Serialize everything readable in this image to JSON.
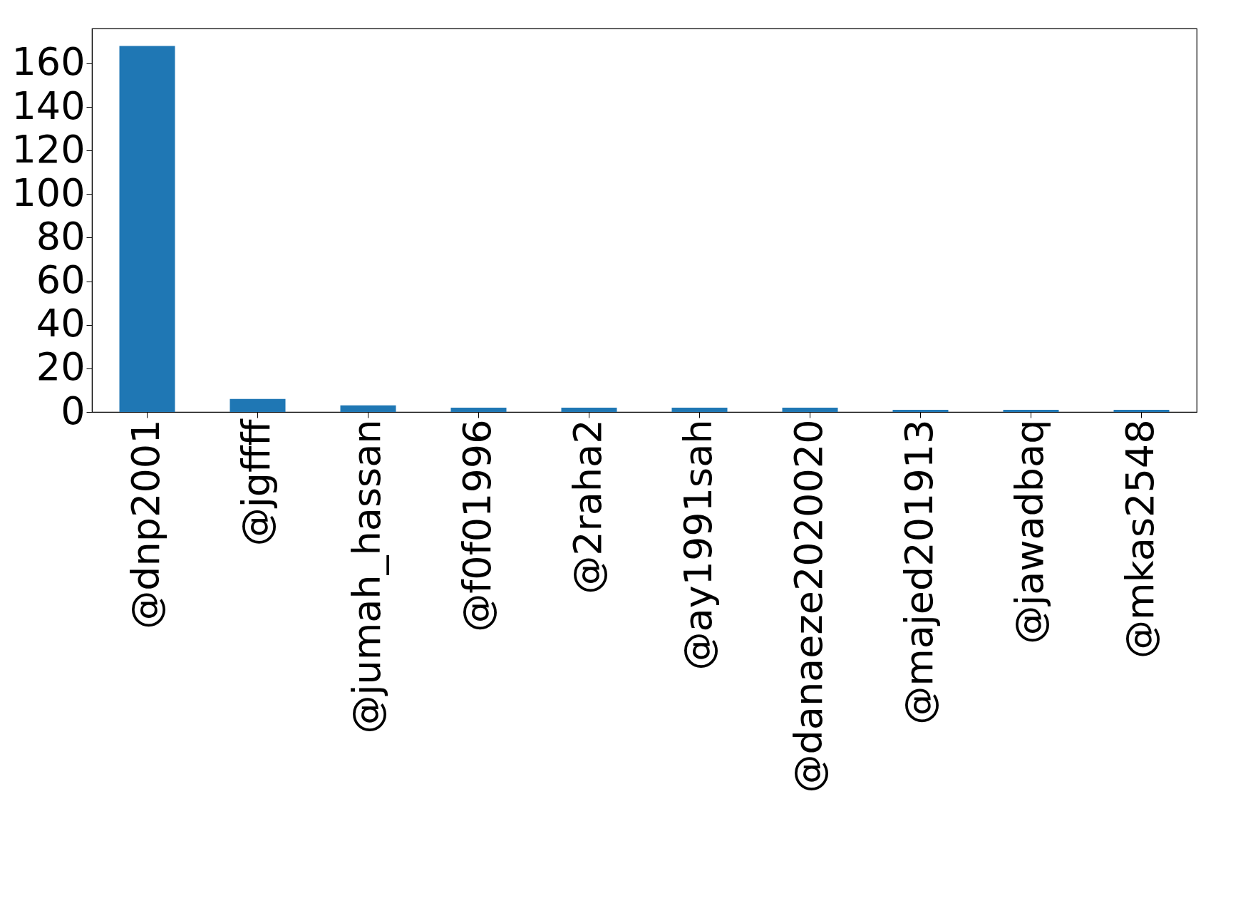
{
  "chart_data": {
    "type": "bar",
    "categories": [
      "@dnp2001",
      "@jgffff",
      "@jumah_hassan",
      "@f0f01996",
      "@2raha2",
      "@ay1991sah",
      "@danaeze2020020",
      "@majed201913",
      "@jawadbaq",
      "@mkas2548"
    ],
    "values": [
      168,
      6,
      3,
      2,
      2,
      2,
      2,
      1,
      1,
      1
    ],
    "color": "#1f77b4",
    "ylim": [
      0,
      176
    ],
    "yticks": [
      0,
      20,
      40,
      60,
      80,
      100,
      120,
      140,
      160
    ],
    "grid": false
  }
}
